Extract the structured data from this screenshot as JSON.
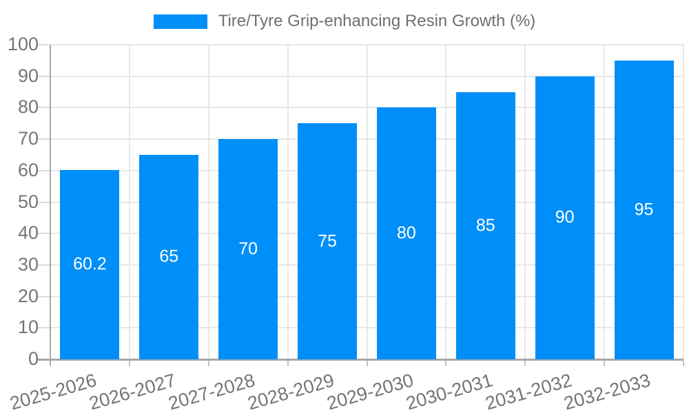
{
  "chart_data": {
    "type": "bar",
    "title": "Tire/Tyre Grip-enhancing Resin Growth (%)",
    "categories": [
      "2025-2026",
      "2026-2027",
      "2027-2028",
      "2028-2029",
      "2029-2030",
      "2030-2031",
      "2031-2032",
      "2032-2033"
    ],
    "series": [
      {
        "name": "Tire/Tyre Grip-enhancing Resin Growth (%)",
        "values": [
          60.2,
          65,
          70,
          75,
          80,
          85,
          90,
          95
        ],
        "value_labels": [
          "60.2",
          "65",
          "70",
          "75",
          "80",
          "85",
          "90",
          "95"
        ],
        "color": "#008FF8"
      }
    ],
    "xlabel": "",
    "ylabel": "",
    "ylim": [
      0,
      100
    ],
    "yticks": [
      0,
      10,
      20,
      30,
      40,
      50,
      60,
      70,
      80,
      90,
      100
    ],
    "grid": true,
    "legend_position": "top",
    "colors": {
      "bar": "#008FF8",
      "bar_label_text": "#ffffff",
      "axis_tick_text": "#757575",
      "legend_text": "#6f6f6f",
      "gridline": "#e7e7e7",
      "axis_line": "#a8a8a8"
    }
  }
}
